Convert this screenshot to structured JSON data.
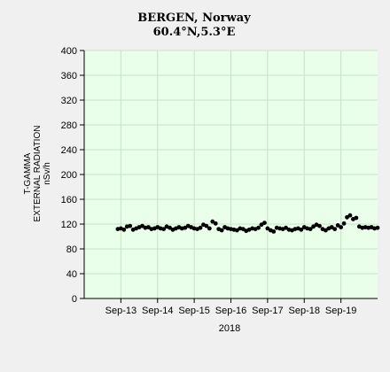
{
  "chart_data": {
    "type": "scatter",
    "title_line1": "BERGEN, Norway",
    "title_line2": "60.4°N,5.3°E",
    "ylabel": [
      "T-GAMMA",
      "EXTERNAL RADIATION",
      "nSv/h"
    ],
    "xlabel": "2018",
    "ylim": [
      0,
      400
    ],
    "yticks": [
      0,
      40,
      80,
      120,
      160,
      200,
      240,
      280,
      320,
      360,
      400
    ],
    "xlim": [
      "2018-09-12",
      "2018-09-20"
    ],
    "xticks": [
      {
        "label": "Sep-13",
        "x": "2018-09-13T00:00"
      },
      {
        "label": "Sep-14",
        "x": "2018-09-14T00:00"
      },
      {
        "label": "Sep-15",
        "x": "2018-09-15T00:00"
      },
      {
        "label": "Sep-16",
        "x": "2018-09-16T00:00"
      },
      {
        "label": "Sep-17",
        "x": "2018-09-17T00:00"
      },
      {
        "label": "Sep-18",
        "x": "2018-09-18T00:00"
      },
      {
        "label": "Sep-19",
        "x": "2018-09-19T00:00"
      }
    ],
    "grid": true,
    "colors": {
      "plot_bg": "#eaffea",
      "grid": "#c8e0c8",
      "marker": "#000000",
      "page_bg": "#f0f0f0"
    },
    "series": [
      {
        "points": [
          {
            "x": "2018-09-12T22:00",
            "y": 112
          },
          {
            "x": "2018-09-13T00:00",
            "y": 113
          },
          {
            "x": "2018-09-13T02:00",
            "y": 111
          },
          {
            "x": "2018-09-13T04:00",
            "y": 116
          },
          {
            "x": "2018-09-13T06:00",
            "y": 117
          },
          {
            "x": "2018-09-13T08:00",
            "y": 111
          },
          {
            "x": "2018-09-13T10:00",
            "y": 113
          },
          {
            "x": "2018-09-13T12:00",
            "y": 115
          },
          {
            "x": "2018-09-13T14:00",
            "y": 117
          },
          {
            "x": "2018-09-13T16:00",
            "y": 114
          },
          {
            "x": "2018-09-13T18:00",
            "y": 115
          },
          {
            "x": "2018-09-13T20:00",
            "y": 112
          },
          {
            "x": "2018-09-13T22:00",
            "y": 113
          },
          {
            "x": "2018-09-14T00:00",
            "y": 115
          },
          {
            "x": "2018-09-14T02:00",
            "y": 113
          },
          {
            "x": "2018-09-14T04:00",
            "y": 112
          },
          {
            "x": "2018-09-14T06:00",
            "y": 116
          },
          {
            "x": "2018-09-14T08:00",
            "y": 114
          },
          {
            "x": "2018-09-14T10:00",
            "y": 111
          },
          {
            "x": "2018-09-14T12:00",
            "y": 113
          },
          {
            "x": "2018-09-14T14:00",
            "y": 115
          },
          {
            "x": "2018-09-14T16:00",
            "y": 113
          },
          {
            "x": "2018-09-14T18:00",
            "y": 114
          },
          {
            "x": "2018-09-14T20:00",
            "y": 117
          },
          {
            "x": "2018-09-14T22:00",
            "y": 115
          },
          {
            "x": "2018-09-15T00:00",
            "y": 113
          },
          {
            "x": "2018-09-15T02:00",
            "y": 112
          },
          {
            "x": "2018-09-15T04:00",
            "y": 114
          },
          {
            "x": "2018-09-15T06:00",
            "y": 119
          },
          {
            "x": "2018-09-15T08:00",
            "y": 117
          },
          {
            "x": "2018-09-15T10:00",
            "y": 113
          },
          {
            "x": "2018-09-15T12:00",
            "y": 124
          },
          {
            "x": "2018-09-15T14:00",
            "y": 121
          },
          {
            "x": "2018-09-15T16:00",
            "y": 112
          },
          {
            "x": "2018-09-15T18:00",
            "y": 110
          },
          {
            "x": "2018-09-15T20:00",
            "y": 115
          },
          {
            "x": "2018-09-15T22:00",
            "y": 113
          },
          {
            "x": "2018-09-16T00:00",
            "y": 112
          },
          {
            "x": "2018-09-16T02:00",
            "y": 111
          },
          {
            "x": "2018-09-16T04:00",
            "y": 110
          },
          {
            "x": "2018-09-16T06:00",
            "y": 113
          },
          {
            "x": "2018-09-16T08:00",
            "y": 112
          },
          {
            "x": "2018-09-16T10:00",
            "y": 109
          },
          {
            "x": "2018-09-16T12:00",
            "y": 111
          },
          {
            "x": "2018-09-16T14:00",
            "y": 113
          },
          {
            "x": "2018-09-16T16:00",
            "y": 112
          },
          {
            "x": "2018-09-16T18:00",
            "y": 114
          },
          {
            "x": "2018-09-16T20:00",
            "y": 119
          },
          {
            "x": "2018-09-16T22:00",
            "y": 122
          },
          {
            "x": "2018-09-17T00:00",
            "y": 113
          },
          {
            "x": "2018-09-17T02:00",
            "y": 110
          },
          {
            "x": "2018-09-17T04:00",
            "y": 108
          },
          {
            "x": "2018-09-17T06:00",
            "y": 114
          },
          {
            "x": "2018-09-17T08:00",
            "y": 113
          },
          {
            "x": "2018-09-17T10:00",
            "y": 112
          },
          {
            "x": "2018-09-17T12:00",
            "y": 114
          },
          {
            "x": "2018-09-17T14:00",
            "y": 111
          },
          {
            "x": "2018-09-17T16:00",
            "y": 110
          },
          {
            "x": "2018-09-17T18:00",
            "y": 112
          },
          {
            "x": "2018-09-17T20:00",
            "y": 113
          },
          {
            "x": "2018-09-17T22:00",
            "y": 111
          },
          {
            "x": "2018-09-18T00:00",
            "y": 115
          },
          {
            "x": "2018-09-18T02:00",
            "y": 113
          },
          {
            "x": "2018-09-18T04:00",
            "y": 112
          },
          {
            "x": "2018-09-18T06:00",
            "y": 116
          },
          {
            "x": "2018-09-18T08:00",
            "y": 119
          },
          {
            "x": "2018-09-18T10:00",
            "y": 117
          },
          {
            "x": "2018-09-18T12:00",
            "y": 112
          },
          {
            "x": "2018-09-18T14:00",
            "y": 110
          },
          {
            "x": "2018-09-18T16:00",
            "y": 113
          },
          {
            "x": "2018-09-18T18:00",
            "y": 115
          },
          {
            "x": "2018-09-18T20:00",
            "y": 112
          },
          {
            "x": "2018-09-18T22:00",
            "y": 118
          },
          {
            "x": "2018-09-19T00:00",
            "y": 115
          },
          {
            "x": "2018-09-19T02:00",
            "y": 121
          },
          {
            "x": "2018-09-19T04:00",
            "y": 131
          },
          {
            "x": "2018-09-19T06:00",
            "y": 134
          },
          {
            "x": "2018-09-19T08:00",
            "y": 128
          },
          {
            "x": "2018-09-19T10:00",
            "y": 130
          },
          {
            "x": "2018-09-19T12:00",
            "y": 116
          },
          {
            "x": "2018-09-19T14:00",
            "y": 114
          },
          {
            "x": "2018-09-19T16:00",
            "y": 115
          },
          {
            "x": "2018-09-19T18:00",
            "y": 114
          },
          {
            "x": "2018-09-19T20:00",
            "y": 115
          },
          {
            "x": "2018-09-19T22:00",
            "y": 113
          },
          {
            "x": "2018-09-20T00:00",
            "y": 114
          }
        ]
      }
    ]
  }
}
